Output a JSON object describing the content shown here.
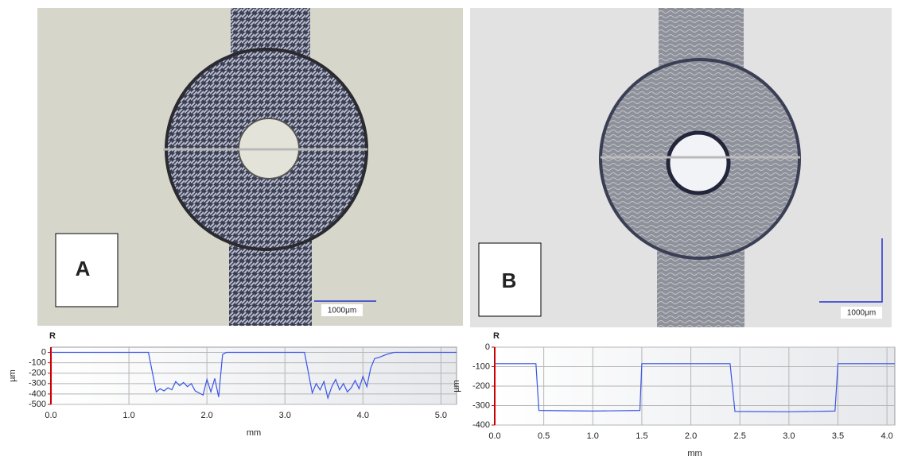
{
  "panels": [
    {
      "label": "A",
      "scale_bar": "1000μm"
    },
    {
      "label": "B",
      "scale_bar": "1000μm"
    }
  ],
  "chart_data": [
    {
      "type": "line",
      "annotation": "R",
      "xlabel": "mm",
      "ylabel": "µm",
      "color": "#3a55e6",
      "grid": true,
      "x": [
        0,
        1.25,
        1.35,
        1.4,
        1.45,
        1.5,
        1.55,
        1.6,
        1.65,
        1.7,
        1.75,
        1.8,
        1.85,
        1.9,
        1.95,
        2.0,
        2.05,
        2.1,
        2.15,
        2.2,
        2.25,
        3.25,
        3.35,
        3.4,
        3.45,
        3.5,
        3.55,
        3.6,
        3.65,
        3.7,
        3.75,
        3.8,
        3.85,
        3.9,
        3.95,
        4.0,
        4.05,
        4.1,
        4.15,
        4.2,
        4.3,
        4.4,
        5.2
      ],
      "values": [
        0,
        0,
        -380,
        -350,
        -370,
        -340,
        -360,
        -280,
        -320,
        -290,
        -330,
        -300,
        -370,
        -390,
        -410,
        -260,
        -380,
        -250,
        -430,
        -20,
        0,
        0,
        -390,
        -300,
        -360,
        -280,
        -440,
        -330,
        -260,
        -360,
        -300,
        -380,
        -340,
        -270,
        -350,
        -230,
        -330,
        -150,
        -60,
        -50,
        -20,
        0,
        0
      ],
      "xlim": [
        0,
        5.2
      ],
      "ylim": [
        -500,
        50
      ],
      "xticks": [
        {
          "value": 0,
          "label": "0.0"
        },
        {
          "value": 1,
          "label": "1.0"
        },
        {
          "value": 2,
          "label": "2.0"
        },
        {
          "value": 3,
          "label": "3.0"
        },
        {
          "value": 4,
          "label": "4.0"
        },
        {
          "value": 5,
          "label": "5.0"
        }
      ],
      "yticks": [
        0,
        -100,
        -200,
        -300,
        -400,
        -500
      ]
    },
    {
      "type": "line",
      "annotation": "R",
      "xlabel": "mm",
      "ylabel": "µm",
      "color": "#3a55e6",
      "grid": true,
      "x": [
        0,
        0.42,
        0.45,
        1.0,
        1.48,
        1.5,
        2.4,
        2.45,
        3.0,
        3.47,
        3.5,
        4.08
      ],
      "values": [
        -85,
        -85,
        -325,
        -328,
        -325,
        -85,
        -85,
        -330,
        -332,
        -328,
        -85,
        -85
      ],
      "xlim": [
        0,
        4.08
      ],
      "ylim": [
        -400,
        0
      ],
      "xticks": [
        {
          "value": 0,
          "label": "0.0"
        },
        {
          "value": 0.5,
          "label": "0.5"
        },
        {
          "value": 1,
          "label": "1.0"
        },
        {
          "value": 1.5,
          "label": "1.5"
        },
        {
          "value": 2,
          "label": "2.0"
        },
        {
          "value": 2.5,
          "label": "2.5"
        },
        {
          "value": 3,
          "label": "3.0"
        },
        {
          "value": 3.5,
          "label": "3.5"
        },
        {
          "value": 4,
          "label": "4.0"
        }
      ],
      "yticks": [
        0,
        -100,
        -200,
        -300,
        -400
      ]
    }
  ]
}
